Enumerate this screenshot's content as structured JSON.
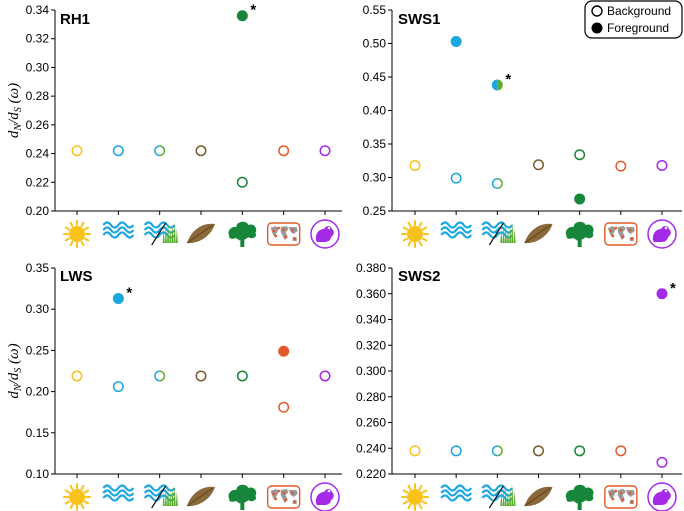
{
  "ylabel": {
    "main": "d",
    "sub1": "N",
    "slash": "/d",
    "sub2": "S",
    "omega": "(ω)"
  },
  "legend": {
    "background": "Background",
    "foreground": "Foreground"
  },
  "lineage_icons": [
    {
      "name": "sun-icon",
      "color": "#f9c21a"
    },
    {
      "name": "waves-icon",
      "color": "#1aa7e0"
    },
    {
      "name": "waves-grass-icon",
      "color": "#5cae32"
    },
    {
      "name": "leaf-icon",
      "color": "#7a5a2b"
    },
    {
      "name": "tree-icon",
      "color": "#16873a"
    },
    {
      "name": "world-map-icon",
      "color": "#e25a2a"
    },
    {
      "name": "frog-icon",
      "color": "#a52ae8"
    }
  ],
  "chart_data": [
    {
      "type": "scatter",
      "title": "RH1",
      "categories": [
        "sun",
        "waves",
        "waves-grass",
        "leaf",
        "tree",
        "world-map",
        "frog"
      ],
      "ylim": [
        0.2,
        0.34
      ],
      "yticks": [
        "0.20",
        "0.22",
        "0.24",
        "0.26",
        "0.28",
        "0.30",
        "0.32",
        "0.34"
      ],
      "background": [
        0.242,
        0.242,
        0.242,
        0.242,
        0.22,
        0.242,
        0.242
      ],
      "foreground": [
        null,
        null,
        null,
        null,
        0.336,
        null,
        null
      ],
      "significant": [
        false,
        false,
        false,
        false,
        true,
        false,
        false
      ],
      "legend": false
    },
    {
      "type": "scatter",
      "title": "SWS1",
      "categories": [
        "sun",
        "waves",
        "waves-grass",
        "leaf",
        "tree",
        "world-map",
        "frog"
      ],
      "ylim": [
        0.25,
        0.55
      ],
      "yticks": [
        "0.25",
        "0.30",
        "0.35",
        "0.40",
        "0.45",
        "0.50",
        "0.55"
      ],
      "background": [
        0.318,
        0.299,
        0.291,
        0.319,
        0.334,
        0.317,
        0.318
      ],
      "foreground": [
        null,
        0.503,
        0.438,
        null,
        0.268,
        null,
        null
      ],
      "significant": [
        false,
        false,
        true,
        false,
        false,
        false,
        false
      ],
      "legend": true
    },
    {
      "type": "scatter",
      "title": "LWS",
      "categories": [
        "sun",
        "waves",
        "waves-grass",
        "leaf",
        "tree",
        "world-map",
        "frog"
      ],
      "ylim": [
        0.1,
        0.35
      ],
      "yticks": [
        "0.10",
        "0.15",
        "0.20",
        "0.25",
        "0.30",
        "0.35"
      ],
      "background": [
        0.219,
        0.206,
        0.219,
        0.219,
        0.219,
        0.181,
        0.219
      ],
      "foreground": [
        null,
        0.313,
        null,
        null,
        null,
        0.249,
        null
      ],
      "significant": [
        false,
        true,
        false,
        false,
        false,
        false,
        false
      ],
      "legend": false
    },
    {
      "type": "scatter",
      "title": "SWS2",
      "categories": [
        "sun",
        "waves",
        "waves-grass",
        "leaf",
        "tree",
        "world-map",
        "frog"
      ],
      "ylim": [
        0.22,
        0.38
      ],
      "yticks": [
        "0.220",
        "0.240",
        "0.260",
        "0.280",
        "0.300",
        "0.320",
        "0.340",
        "0.360",
        "0.380"
      ],
      "background": [
        0.238,
        0.238,
        0.238,
        0.238,
        0.238,
        0.238,
        0.229
      ],
      "foreground": [
        null,
        null,
        null,
        null,
        null,
        null,
        0.36
      ],
      "significant": [
        false,
        false,
        false,
        false,
        false,
        false,
        true
      ],
      "legend": false
    }
  ]
}
